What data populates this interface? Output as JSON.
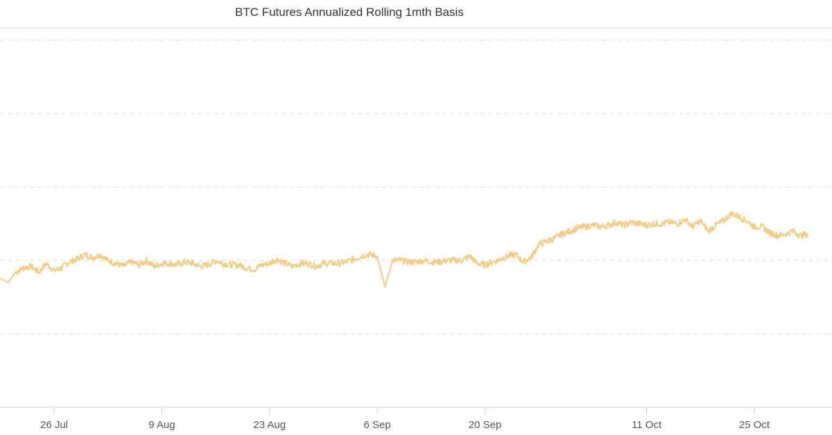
{
  "chart_data": {
    "type": "line",
    "title": "BTC Futures Annualized Rolling 1mth Basis",
    "xlabel": "",
    "ylabel": "",
    "x_tick_labels": [
      "26 Jul",
      "9 Aug",
      "23 Aug",
      "6 Sep",
      "20 Sep",
      "11 Oct",
      "25 Oct"
    ],
    "x_tick_dates": [
      "2021-07-26",
      "2021-08-09",
      "2021-08-23",
      "2021-09-06",
      "2021-09-20",
      "2021-10-11",
      "2021-10-25"
    ],
    "x_range": [
      "2021-07-19",
      "2021-11-01"
    ],
    "y_tick_labels": [],
    "grid": "horizontal dashed",
    "legend": "none",
    "colors": {
      "line": "#f2cc85",
      "grid": "#dddddd",
      "axis": "#cccccc"
    },
    "series": [
      {
        "values": [
          [
            "2021-07-19",
            8.8
          ],
          [
            "2021-07-20",
            8.5
          ],
          [
            "2021-07-21",
            9.2
          ],
          [
            "2021-07-22",
            9.5
          ],
          [
            "2021-07-23",
            9.6
          ],
          [
            "2021-07-24",
            9.2
          ],
          [
            "2021-07-25",
            9.8
          ],
          [
            "2021-07-26",
            9.3
          ],
          [
            "2021-07-27",
            9.5
          ],
          [
            "2021-07-28",
            9.9
          ],
          [
            "2021-07-29",
            10.1
          ],
          [
            "2021-07-30",
            10.4
          ],
          [
            "2021-07-31",
            10.2
          ],
          [
            "2021-08-01",
            10.4
          ],
          [
            "2021-08-02",
            10.0
          ],
          [
            "2021-08-03",
            9.8
          ],
          [
            "2021-08-04",
            9.6
          ],
          [
            "2021-08-05",
            9.9
          ],
          [
            "2021-08-06",
            9.7
          ],
          [
            "2021-08-07",
            10.0
          ],
          [
            "2021-08-08",
            9.6
          ],
          [
            "2021-08-09",
            9.8
          ],
          [
            "2021-08-10",
            9.8
          ],
          [
            "2021-08-11",
            9.7
          ],
          [
            "2021-08-12",
            9.9
          ],
          [
            "2021-08-13",
            9.8
          ],
          [
            "2021-08-14",
            9.6
          ],
          [
            "2021-08-15",
            9.7
          ],
          [
            "2021-08-16",
            10.0
          ],
          [
            "2021-08-17",
            9.8
          ],
          [
            "2021-08-18",
            9.7
          ],
          [
            "2021-08-19",
            9.7
          ],
          [
            "2021-08-20",
            9.5
          ],
          [
            "2021-08-21",
            9.4
          ],
          [
            "2021-08-22",
            9.7
          ],
          [
            "2021-08-23",
            9.8
          ],
          [
            "2021-08-24",
            10.1
          ],
          [
            "2021-08-25",
            9.8
          ],
          [
            "2021-08-26",
            9.6
          ],
          [
            "2021-08-27",
            9.8
          ],
          [
            "2021-08-28",
            9.8
          ],
          [
            "2021-08-29",
            9.6
          ],
          [
            "2021-08-30",
            9.8
          ],
          [
            "2021-08-31",
            9.8
          ],
          [
            "2021-09-01",
            9.8
          ],
          [
            "2021-09-02",
            9.9
          ],
          [
            "2021-09-03",
            10.1
          ],
          [
            "2021-09-04",
            10.3
          ],
          [
            "2021-09-05",
            10.4
          ],
          [
            "2021-09-06",
            10.3
          ],
          [
            "2021-09-07",
            8.2
          ],
          [
            "2021-09-08",
            10.0
          ],
          [
            "2021-09-09",
            10.0
          ],
          [
            "2021-09-10",
            9.9
          ],
          [
            "2021-09-11",
            9.9
          ],
          [
            "2021-09-12",
            10.0
          ],
          [
            "2021-09-13",
            9.9
          ],
          [
            "2021-09-14",
            9.9
          ],
          [
            "2021-09-15",
            10.0
          ],
          [
            "2021-09-16",
            10.0
          ],
          [
            "2021-09-17",
            10.0
          ],
          [
            "2021-09-18",
            10.3
          ],
          [
            "2021-09-19",
            9.8
          ],
          [
            "2021-09-20",
            9.7
          ],
          [
            "2021-09-21",
            9.9
          ],
          [
            "2021-09-22",
            10.1
          ],
          [
            "2021-09-23",
            10.3
          ],
          [
            "2021-09-24",
            10.4
          ],
          [
            "2021-09-25",
            9.9
          ],
          [
            "2021-09-26",
            10.2
          ],
          [
            "2021-09-27",
            11.1
          ],
          [
            "2021-09-28",
            11.3
          ],
          [
            "2021-09-29",
            11.5
          ],
          [
            "2021-09-30",
            11.8
          ],
          [
            "2021-10-01",
            12.0
          ],
          [
            "2021-10-02",
            12.2
          ],
          [
            "2021-10-03",
            12.3
          ],
          [
            "2021-10-04",
            12.4
          ],
          [
            "2021-10-05",
            12.3
          ],
          [
            "2021-10-06",
            12.4
          ],
          [
            "2021-10-07",
            12.6
          ],
          [
            "2021-10-08",
            12.4
          ],
          [
            "2021-10-09",
            12.6
          ],
          [
            "2021-10-10",
            12.5
          ],
          [
            "2021-10-11",
            12.4
          ],
          [
            "2021-10-12",
            12.5
          ],
          [
            "2021-10-13",
            12.5
          ],
          [
            "2021-10-14",
            12.6
          ],
          [
            "2021-10-15",
            12.5
          ],
          [
            "2021-10-16",
            12.8
          ],
          [
            "2021-10-17",
            12.3
          ],
          [
            "2021-10-18",
            12.7
          ],
          [
            "2021-10-19",
            12.0
          ],
          [
            "2021-10-20",
            12.4
          ],
          [
            "2021-10-21",
            12.7
          ],
          [
            "2021-10-22",
            13.2
          ],
          [
            "2021-10-23",
            13.0
          ],
          [
            "2021-10-24",
            12.7
          ],
          [
            "2021-10-25",
            12.3
          ],
          [
            "2021-10-26",
            12.3
          ],
          [
            "2021-10-27",
            11.9
          ],
          [
            "2021-10-28",
            11.7
          ],
          [
            "2021-10-29",
            11.8
          ],
          [
            "2021-10-30",
            12.0
          ],
          [
            "2021-10-31",
            11.7
          ],
          [
            "2021-11-01",
            11.8
          ]
        ]
      }
    ],
    "ylim": [
      0,
      25
    ],
    "y_grid_values": [
      5,
      10,
      15,
      20,
      25
    ]
  }
}
